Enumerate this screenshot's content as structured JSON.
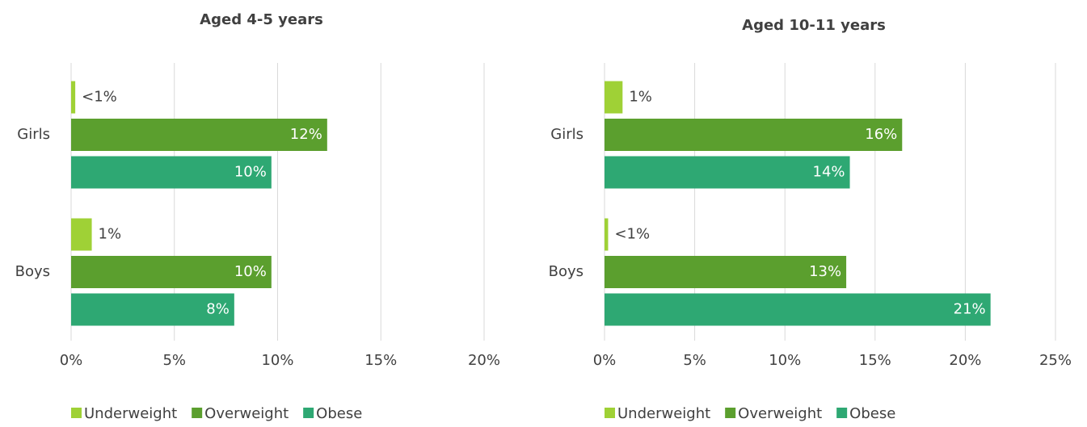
{
  "chart_data": [
    {
      "type": "bar",
      "orientation": "horizontal",
      "title": "Aged 4-5 years",
      "categories": [
        "Girls",
        "Boys"
      ],
      "series": [
        {
          "name": "Underweight",
          "color": "#9fd136",
          "values": [
            0.2,
            1.0
          ],
          "value_labels": [
            "<1%",
            "1%"
          ]
        },
        {
          "name": "Overweight",
          "color": "#5b9f2e",
          "values": [
            12.4,
            9.7
          ],
          "value_labels": [
            "12%",
            "10%"
          ]
        },
        {
          "name": "Obese",
          "color": "#2ea873",
          "values": [
            9.7,
            7.9
          ],
          "value_labels": [
            "10%",
            "8%"
          ]
        }
      ],
      "xlim": [
        0,
        20
      ],
      "xticks": [
        {
          "value": 0,
          "label": "0%"
        },
        {
          "value": 5,
          "label": "5%"
        },
        {
          "value": 10,
          "label": "10%"
        },
        {
          "value": 15,
          "label": "15%"
        },
        {
          "value": 20,
          "label": "20%"
        }
      ],
      "grid": true,
      "legend": "bottom"
    },
    {
      "type": "bar",
      "orientation": "horizontal",
      "title": "Aged 10-11 years",
      "categories": [
        "Girls",
        "Boys"
      ],
      "series": [
        {
          "name": "Underweight",
          "color": "#9fd136",
          "values": [
            1.0,
            0.2
          ],
          "value_labels": [
            "1%",
            "<1%"
          ]
        },
        {
          "name": "Overweight",
          "color": "#5b9f2e",
          "values": [
            16.5,
            13.4
          ],
          "value_labels": [
            "16%",
            "13%"
          ]
        },
        {
          "name": "Obese",
          "color": "#2ea873",
          "values": [
            13.6,
            21.4
          ],
          "value_labels": [
            "14%",
            "21%"
          ]
        }
      ],
      "xlim": [
        0,
        25
      ],
      "xticks": [
        {
          "value": 0,
          "label": "0%"
        },
        {
          "value": 5,
          "label": "5%"
        },
        {
          "value": 10,
          "label": "10%"
        },
        {
          "value": 15,
          "label": "15%"
        },
        {
          "value": 20,
          "label": "20%"
        },
        {
          "value": 25,
          "label": "25%"
        }
      ],
      "grid": true,
      "legend": "bottom"
    }
  ]
}
